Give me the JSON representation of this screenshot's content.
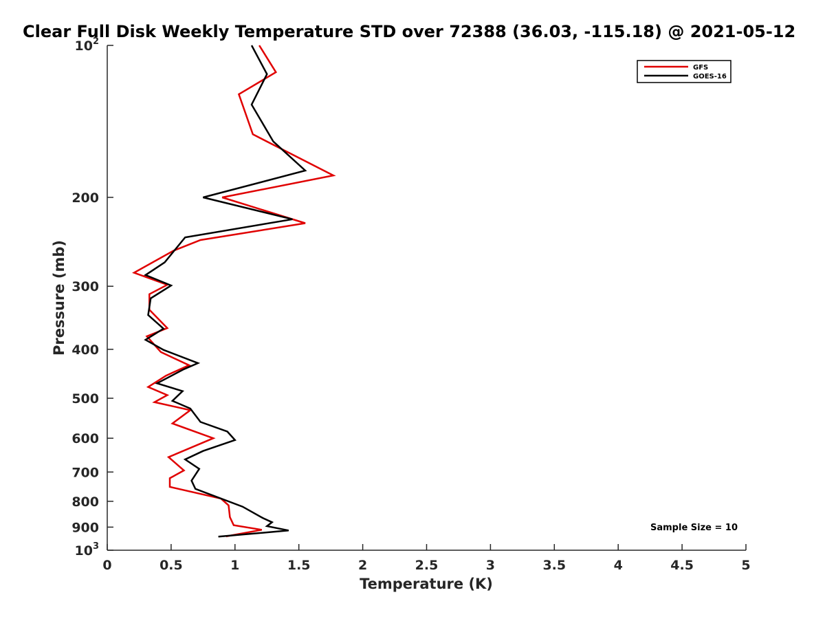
{
  "chart_data": {
    "type": "line",
    "title": "Clear Full Disk Weekly Temperature STD over 72388 (36.03, -115.18) @ 2021-05-12",
    "xlabel": "Temperature (K)",
    "ylabel": "Pressure (mb)",
    "xlim": [
      0,
      5
    ],
    "ylim": [
      100,
      1000
    ],
    "y_scale": "log",
    "y_reversed": true,
    "x_ticks": [
      {
        "value": 0,
        "label": "0"
      },
      {
        "value": 0.5,
        "label": "0.5"
      },
      {
        "value": 1,
        "label": "1"
      },
      {
        "value": 1.5,
        "label": "1.5"
      },
      {
        "value": 2,
        "label": "2"
      },
      {
        "value": 2.5,
        "label": "2.5"
      },
      {
        "value": 3,
        "label": "3"
      },
      {
        "value": 3.5,
        "label": "3.5"
      },
      {
        "value": 4,
        "label": "4"
      },
      {
        "value": 4.5,
        "label": "4.5"
      },
      {
        "value": 5,
        "label": "5"
      }
    ],
    "y_ticks": [
      {
        "value": 100,
        "base": "10",
        "exp": "2"
      },
      {
        "value": 200,
        "base": "200",
        "exp": ""
      },
      {
        "value": 300,
        "base": "300",
        "exp": ""
      },
      {
        "value": 400,
        "base": "400",
        "exp": ""
      },
      {
        "value": 500,
        "base": "500",
        "exp": ""
      },
      {
        "value": 600,
        "base": "600",
        "exp": ""
      },
      {
        "value": 700,
        "base": "700",
        "exp": ""
      },
      {
        "value": 800,
        "base": "800",
        "exp": ""
      },
      {
        "value": 900,
        "base": "900",
        "exp": ""
      },
      {
        "value": 1000,
        "base": "10",
        "exp": "3"
      }
    ],
    "legend_position": "top-right",
    "grid": false,
    "annotation": "Sample Size = 10",
    "series": [
      {
        "name": "GFS",
        "color": "#e00000",
        "points": [
          [
            1.19,
            100
          ],
          [
            1.32,
            113
          ],
          [
            1.03,
            125
          ],
          [
            1.14,
            150
          ],
          [
            1.77,
            181
          ],
          [
            0.9,
            200
          ],
          [
            1.55,
            225
          ],
          [
            0.73,
            243
          ],
          [
            0.52,
            255
          ],
          [
            0.21,
            282
          ],
          [
            0.47,
            298
          ],
          [
            0.33,
            311
          ],
          [
            0.33,
            334
          ],
          [
            0.47,
            363
          ],
          [
            0.31,
            377
          ],
          [
            0.42,
            405
          ],
          [
            0.64,
            430
          ],
          [
            0.46,
            451
          ],
          [
            0.32,
            475
          ],
          [
            0.47,
            493
          ],
          [
            0.37,
            509
          ],
          [
            0.65,
            528
          ],
          [
            0.51,
            561
          ],
          [
            0.83,
            600
          ],
          [
            0.48,
            654
          ],
          [
            0.6,
            695
          ],
          [
            0.49,
            720
          ],
          [
            0.49,
            749
          ],
          [
            0.89,
            790
          ],
          [
            0.95,
            815
          ],
          [
            0.96,
            860
          ],
          [
            0.99,
            892
          ],
          [
            1.21,
            911
          ],
          [
            0.93,
            939
          ]
        ]
      },
      {
        "name": "GOES-16",
        "color": "#000000",
        "points": [
          [
            1.13,
            100
          ],
          [
            1.25,
            114
          ],
          [
            1.13,
            131
          ],
          [
            1.3,
            155
          ],
          [
            1.55,
            177
          ],
          [
            0.75,
            200
          ],
          [
            1.45,
            221
          ],
          [
            0.61,
            240
          ],
          [
            0.45,
            269
          ],
          [
            0.3,
            285
          ],
          [
            0.5,
            299
          ],
          [
            0.34,
            317
          ],
          [
            0.32,
            342
          ],
          [
            0.44,
            364
          ],
          [
            0.3,
            383
          ],
          [
            0.44,
            401
          ],
          [
            0.71,
            426
          ],
          [
            0.6,
            438
          ],
          [
            0.39,
            467
          ],
          [
            0.59,
            484
          ],
          [
            0.51,
            506
          ],
          [
            0.65,
            524
          ],
          [
            0.73,
            557
          ],
          [
            0.94,
            582
          ],
          [
            1.0,
            605
          ],
          [
            0.75,
            636
          ],
          [
            0.61,
            661
          ],
          [
            0.72,
            690
          ],
          [
            0.66,
            728
          ],
          [
            0.69,
            756
          ],
          [
            1.06,
            820
          ],
          [
            1.22,
            864
          ],
          [
            1.29,
            880
          ],
          [
            1.25,
            896
          ],
          [
            1.42,
            914
          ],
          [
            0.87,
            940
          ]
        ]
      }
    ]
  }
}
